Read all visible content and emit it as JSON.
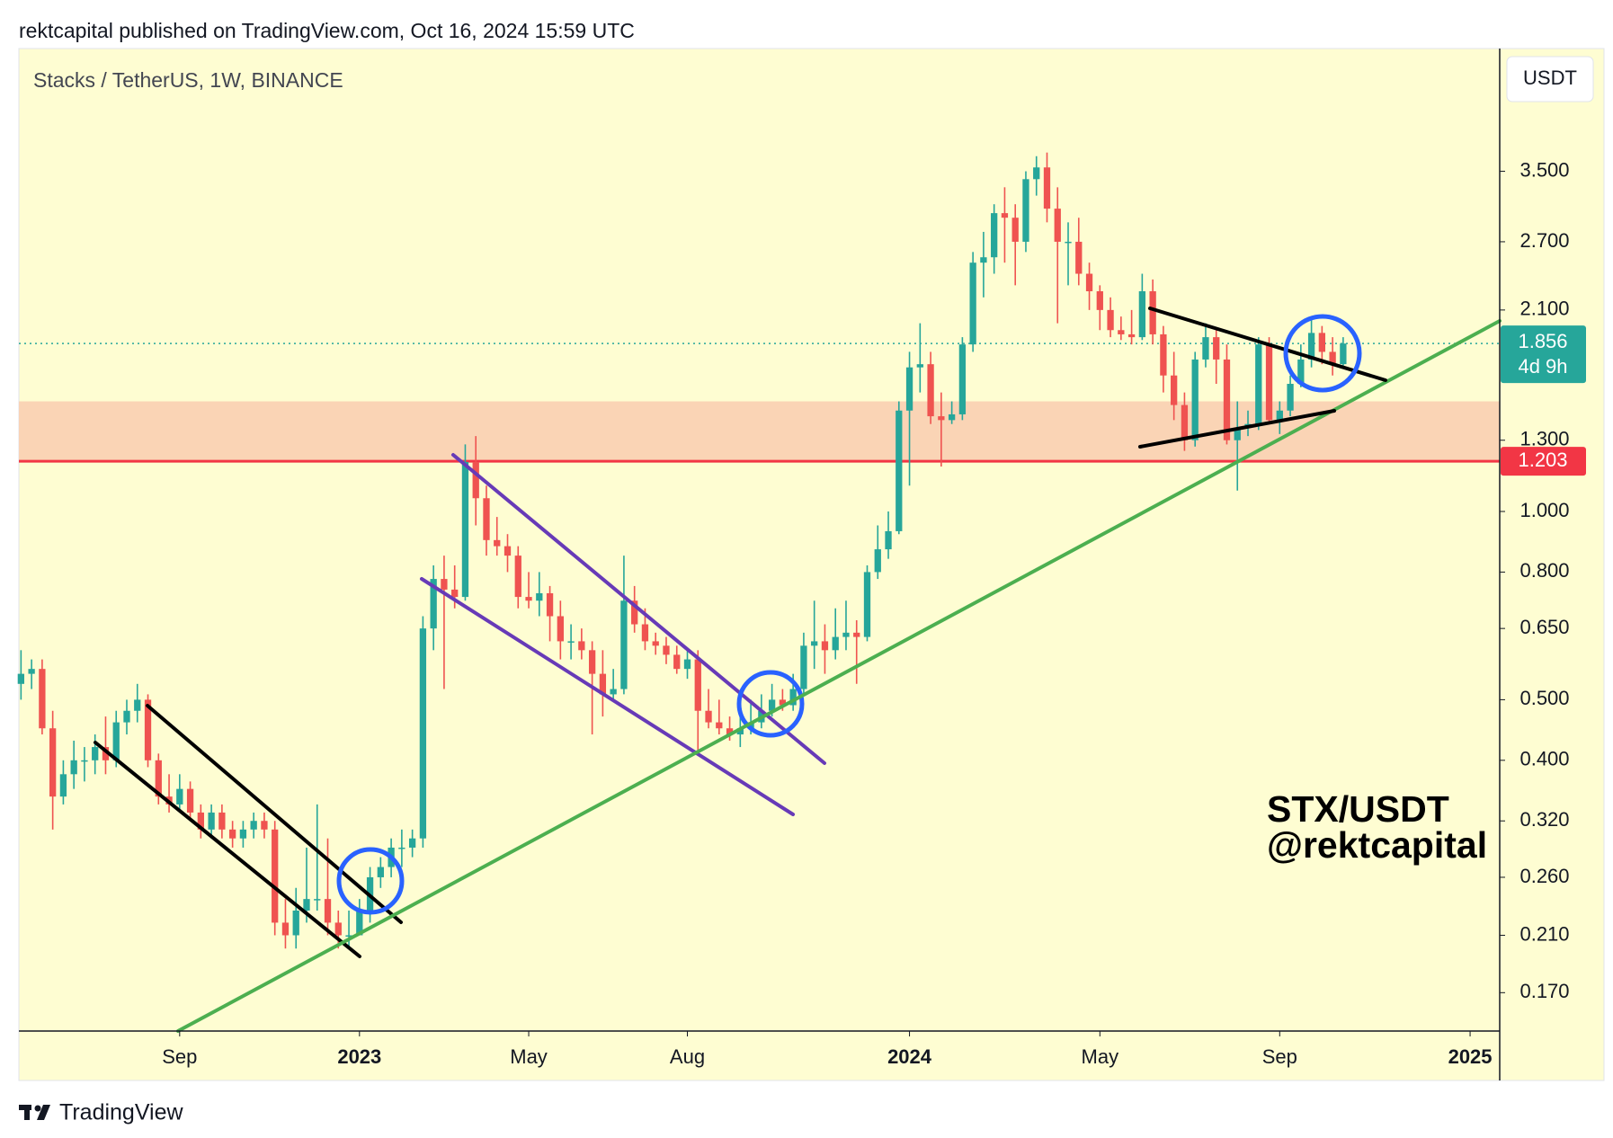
{
  "header": "rektcapital published on TradingView.com, Oct 16, 2024 15:59 UTC",
  "footer": "TradingView",
  "currency_button": "USDT",
  "chart_data": {
    "type": "candlestick",
    "title": "Stacks / TetherUS, 1W, BINANCE",
    "watermark": [
      "STX/USDT",
      "@rektcapital"
    ],
    "log_scale": true,
    "up_color": "#26a69a",
    "down_color": "#ef5350",
    "ylim": [
      0.1476,
      5.5
    ],
    "yticks": [
      {
        "value": 0.17,
        "label": "0.170"
      },
      {
        "value": 0.21,
        "label": "0.210"
      },
      {
        "value": 0.26,
        "label": "0.260"
      },
      {
        "value": 0.32,
        "label": "0.320"
      },
      {
        "value": 0.4,
        "label": "0.400"
      },
      {
        "value": 0.5,
        "label": "0.500"
      },
      {
        "value": 0.65,
        "label": "0.650"
      },
      {
        "value": 0.8,
        "label": "0.800"
      },
      {
        "value": 1,
        "label": "1.000"
      },
      {
        "value": 1.3,
        "label": "1.300"
      },
      {
        "value": 2.1,
        "label": "2.100"
      },
      {
        "value": 2.7,
        "label": "2.700"
      },
      {
        "value": 3.5,
        "label": "3.500"
      }
    ],
    "xlim": [
      -0.2,
      139.8
    ],
    "xticks": [
      {
        "value": 15,
        "label": "Sep"
      },
      {
        "value": 32,
        "label": "2023"
      },
      {
        "value": 48,
        "label": "May"
      },
      {
        "value": 63,
        "label": "Aug"
      },
      {
        "value": 84,
        "label": "2024"
      },
      {
        "value": 102,
        "label": "May"
      },
      {
        "value": 119,
        "label": "Sep"
      },
      {
        "value": 137,
        "label": "2025"
      }
    ],
    "last_price": {
      "value": 1.856,
      "label": "1.856",
      "countdown": "4d 9h",
      "color": "#26a69a"
    },
    "support_line": {
      "value": 1.203,
      "label": "1.203",
      "color": "#f23645"
    },
    "support_zone": {
      "range": [
        1.203,
        1.5
      ],
      "color": "#f9cdb0"
    },
    "ohlc": [
      [
        0.53,
        0.6,
        0.5,
        0.55
      ],
      [
        0.55,
        0.58,
        0.52,
        0.56
      ],
      [
        0.56,
        0.58,
        0.44,
        0.45
      ],
      [
        0.45,
        0.48,
        0.31,
        0.35
      ],
      [
        0.35,
        0.4,
        0.34,
        0.38
      ],
      [
        0.38,
        0.43,
        0.36,
        0.4
      ],
      [
        0.4,
        0.42,
        0.37,
        0.4
      ],
      [
        0.4,
        0.44,
        0.38,
        0.42
      ],
      [
        0.42,
        0.47,
        0.38,
        0.4
      ],
      [
        0.4,
        0.48,
        0.39,
        0.46
      ],
      [
        0.46,
        0.5,
        0.44,
        0.48
      ],
      [
        0.48,
        0.53,
        0.46,
        0.5
      ],
      [
        0.5,
        0.51,
        0.39,
        0.4
      ],
      [
        0.4,
        0.41,
        0.34,
        0.35
      ],
      [
        0.35,
        0.38,
        0.33,
        0.34
      ],
      [
        0.34,
        0.38,
        0.33,
        0.36
      ],
      [
        0.36,
        0.37,
        0.32,
        0.33
      ],
      [
        0.33,
        0.34,
        0.3,
        0.31
      ],
      [
        0.31,
        0.34,
        0.3,
        0.33
      ],
      [
        0.33,
        0.34,
        0.3,
        0.31
      ],
      [
        0.31,
        0.32,
        0.29,
        0.3
      ],
      [
        0.3,
        0.32,
        0.29,
        0.31
      ],
      [
        0.31,
        0.33,
        0.3,
        0.32
      ],
      [
        0.32,
        0.33,
        0.3,
        0.31
      ],
      [
        0.31,
        0.32,
        0.21,
        0.22
      ],
      [
        0.22,
        0.24,
        0.2,
        0.21
      ],
      [
        0.21,
        0.25,
        0.2,
        0.23
      ],
      [
        0.23,
        0.29,
        0.22,
        0.24
      ],
      [
        0.24,
        0.34,
        0.23,
        0.24
      ],
      [
        0.24,
        0.3,
        0.21,
        0.22
      ],
      [
        0.22,
        0.23,
        0.2,
        0.21
      ],
      [
        0.21,
        0.23,
        0.2,
        0.21
      ],
      [
        0.21,
        0.24,
        0.21,
        0.23
      ],
      [
        0.23,
        0.27,
        0.22,
        0.26
      ],
      [
        0.26,
        0.28,
        0.25,
        0.27
      ],
      [
        0.27,
        0.3,
        0.26,
        0.29
      ],
      [
        0.29,
        0.31,
        0.27,
        0.29
      ],
      [
        0.29,
        0.31,
        0.28,
        0.3
      ],
      [
        0.3,
        0.68,
        0.29,
        0.65
      ],
      [
        0.65,
        0.82,
        0.6,
        0.78
      ],
      [
        0.78,
        0.85,
        0.52,
        0.75
      ],
      [
        0.75,
        0.82,
        0.7,
        0.73
      ],
      [
        0.73,
        1.28,
        0.72,
        1.2
      ],
      [
        1.2,
        1.32,
        0.95,
        1.05
      ],
      [
        1.05,
        1.1,
        0.85,
        0.9
      ],
      [
        0.9,
        0.98,
        0.85,
        0.88
      ],
      [
        0.88,
        0.92,
        0.8,
        0.85
      ],
      [
        0.85,
        0.88,
        0.7,
        0.73
      ],
      [
        0.73,
        0.8,
        0.7,
        0.72
      ],
      [
        0.72,
        0.8,
        0.68,
        0.74
      ],
      [
        0.74,
        0.76,
        0.62,
        0.68
      ],
      [
        0.68,
        0.72,
        0.58,
        0.62
      ],
      [
        0.62,
        0.66,
        0.58,
        0.62
      ],
      [
        0.62,
        0.65,
        0.58,
        0.6
      ],
      [
        0.6,
        0.62,
        0.44,
        0.55
      ],
      [
        0.55,
        0.6,
        0.47,
        0.51
      ],
      [
        0.51,
        0.56,
        0.5,
        0.52
      ],
      [
        0.52,
        0.85,
        0.51,
        0.72
      ],
      [
        0.72,
        0.76,
        0.64,
        0.66
      ],
      [
        0.66,
        0.7,
        0.6,
        0.62
      ],
      [
        0.62,
        0.64,
        0.59,
        0.61
      ],
      [
        0.61,
        0.63,
        0.57,
        0.59
      ],
      [
        0.59,
        0.61,
        0.55,
        0.56
      ],
      [
        0.56,
        0.6,
        0.54,
        0.58
      ],
      [
        0.58,
        0.6,
        0.41,
        0.48
      ],
      [
        0.48,
        0.52,
        0.45,
        0.46
      ],
      [
        0.46,
        0.5,
        0.44,
        0.45
      ],
      [
        0.45,
        0.47,
        0.43,
        0.44
      ],
      [
        0.44,
        0.48,
        0.42,
        0.45
      ],
      [
        0.45,
        0.5,
        0.44,
        0.46
      ],
      [
        0.46,
        0.51,
        0.45,
        0.48
      ],
      [
        0.48,
        0.53,
        0.47,
        0.5
      ],
      [
        0.5,
        0.52,
        0.48,
        0.49
      ],
      [
        0.49,
        0.55,
        0.48,
        0.52
      ],
      [
        0.52,
        0.64,
        0.51,
        0.61
      ],
      [
        0.61,
        0.72,
        0.56,
        0.62
      ],
      [
        0.62,
        0.66,
        0.55,
        0.6
      ],
      [
        0.6,
        0.7,
        0.58,
        0.63
      ],
      [
        0.63,
        0.72,
        0.6,
        0.64
      ],
      [
        0.64,
        0.67,
        0.53,
        0.63
      ],
      [
        0.63,
        0.82,
        0.62,
        0.8
      ],
      [
        0.8,
        0.95,
        0.78,
        0.87
      ],
      [
        0.87,
        1.0,
        0.84,
        0.93
      ],
      [
        0.93,
        1.5,
        0.92,
        1.45
      ],
      [
        1.45,
        1.8,
        1.1,
        1.7
      ],
      [
        1.7,
        2.0,
        1.55,
        1.72
      ],
      [
        1.72,
        1.8,
        1.38,
        1.42
      ],
      [
        1.42,
        1.55,
        1.18,
        1.4
      ],
      [
        1.4,
        1.5,
        1.38,
        1.43
      ],
      [
        1.43,
        1.9,
        1.4,
        1.85
      ],
      [
        1.85,
        2.6,
        1.8,
        2.5
      ],
      [
        2.5,
        2.8,
        2.2,
        2.55
      ],
      [
        2.55,
        3.1,
        2.4,
        3.0
      ],
      [
        3.0,
        3.3,
        2.5,
        2.95
      ],
      [
        2.95,
        3.1,
        2.3,
        2.7
      ],
      [
        2.7,
        3.5,
        2.6,
        3.4
      ],
      [
        3.4,
        3.7,
        3.2,
        3.55
      ],
      [
        3.55,
        3.75,
        2.9,
        3.05
      ],
      [
        3.05,
        3.3,
        2.0,
        2.7
      ],
      [
        2.7,
        2.9,
        2.3,
        2.7
      ],
      [
        2.7,
        2.95,
        2.3,
        2.4
      ],
      [
        2.4,
        2.5,
        2.1,
        2.25
      ],
      [
        2.25,
        2.3,
        1.95,
        2.1
      ],
      [
        2.1,
        2.2,
        1.9,
        1.95
      ],
      [
        1.95,
        2.05,
        1.88,
        1.92
      ],
      [
        1.92,
        2.1,
        1.85,
        1.9
      ],
      [
        1.9,
        2.4,
        1.88,
        2.25
      ],
      [
        2.25,
        2.35,
        1.85,
        1.92
      ],
      [
        1.92,
        1.98,
        1.55,
        1.65
      ],
      [
        1.65,
        1.8,
        1.4,
        1.48
      ],
      [
        1.48,
        1.55,
        1.25,
        1.3
      ],
      [
        1.3,
        1.8,
        1.27,
        1.75
      ],
      [
        1.75,
        2.0,
        1.7,
        1.9
      ],
      [
        1.9,
        1.95,
        1.6,
        1.75
      ],
      [
        1.75,
        1.85,
        1.28,
        1.3
      ],
      [
        1.3,
        1.5,
        1.08,
        1.36
      ],
      [
        1.36,
        1.45,
        1.32,
        1.38
      ],
      [
        1.38,
        1.9,
        1.35,
        1.85
      ],
      [
        1.85,
        1.9,
        1.38,
        1.4
      ],
      [
        1.4,
        1.5,
        1.33,
        1.45
      ],
      [
        1.45,
        1.65,
        1.42,
        1.6
      ],
      [
        1.6,
        1.85,
        1.58,
        1.75
      ],
      [
        1.75,
        2.05,
        1.7,
        1.93
      ],
      [
        1.93,
        1.98,
        1.72,
        1.8
      ],
      [
        1.8,
        1.9,
        1.65,
        1.72
      ],
      [
        1.72,
        1.9,
        1.7,
        1.856
      ]
    ]
  }
}
